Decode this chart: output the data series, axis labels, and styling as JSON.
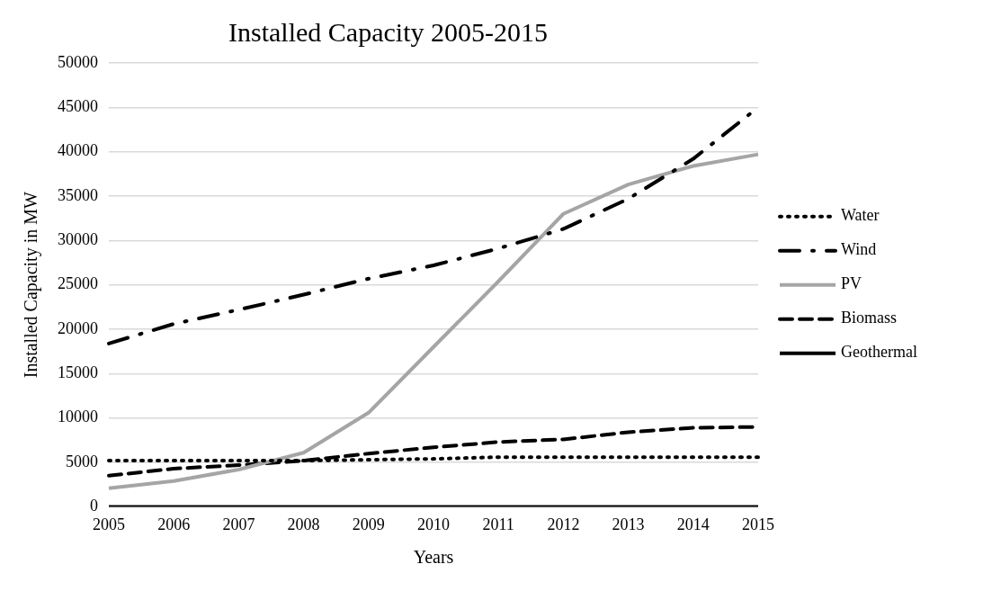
{
  "chart_data": {
    "type": "line",
    "title": "Installed Capacity 2005-2015",
    "xlabel": "Years",
    "ylabel": "Installed Capacity in MW",
    "categories": [
      "2005",
      "2006",
      "2007",
      "2008",
      "2009",
      "2010",
      "2011",
      "2012",
      "2013",
      "2014",
      "2015"
    ],
    "series": [
      {
        "name": "Water",
        "color": "#000000",
        "line_style": "dotted",
        "values": [
          5200,
          5200,
          5200,
          5200,
          5300,
          5400,
          5600,
          5600,
          5600,
          5600,
          5600
        ]
      },
      {
        "name": "Wind",
        "color": "#000000",
        "line_style": "dashdot",
        "values": [
          18400,
          20600,
          22200,
          23900,
          25700,
          27200,
          29100,
          31300,
          34700,
          39200,
          45000
        ]
      },
      {
        "name": "PV",
        "color": "#a5a5a5",
        "line_style": "solid",
        "values": [
          2100,
          2900,
          4200,
          6100,
          10600,
          18000,
          25400,
          33000,
          36300,
          38400,
          39700
        ]
      },
      {
        "name": "Biomass",
        "color": "#000000",
        "line_style": "dashed",
        "values": [
          3500,
          4300,
          4700,
          5200,
          6000,
          6700,
          7300,
          7600,
          8400,
          8900,
          9000
        ]
      },
      {
        "name": "Geothermal",
        "color": "#000000",
        "line_style": "solid",
        "values": [
          0,
          0,
          0,
          0,
          0,
          0,
          0,
          0,
          0,
          0,
          0
        ]
      }
    ],
    "ylim": [
      0,
      50000
    ],
    "yticks": [
      0,
      5000,
      10000,
      15000,
      20000,
      25000,
      30000,
      35000,
      40000,
      45000,
      50000
    ],
    "grid": "y",
    "legend": "right",
    "marker": "none"
  }
}
